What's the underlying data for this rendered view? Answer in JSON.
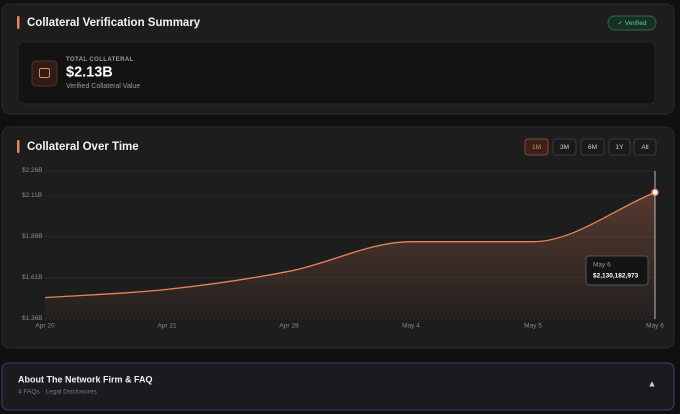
{
  "summary": {
    "title": "Collateral Verification Summary",
    "badge": "✓ Verified",
    "label": "TOTAL COLLATERAL",
    "amount": "$2.13B",
    "caption": "Verified Collateral Value"
  },
  "chart_panel": {
    "title": "Collateral Over Time",
    "ranges": [
      "1M",
      "3M",
      "6M",
      "1Y",
      "All"
    ]
  },
  "chart_data": {
    "type": "area",
    "categories": [
      "Apr 20",
      "Apr 21",
      "Apr 28",
      "May 4",
      "May 5",
      "May 6"
    ],
    "values": [
      1490000000,
      1540000000,
      1650000000,
      1830000000,
      1830000000,
      2130182973
    ],
    "value_labels": [
      null,
      null,
      null,
      null,
      null,
      "$2,130,182,973"
    ],
    "color": "#e8845c",
    "ylim": [
      1360000000,
      2260000000
    ],
    "yticks": [
      {
        "value": 2260000000,
        "label": "$2.26B"
      },
      {
        "value": 2110000000,
        "label": "$2.11B"
      },
      {
        "value": 1860000000,
        "label": "$1.86B"
      },
      {
        "value": 1610000000,
        "label": "$1.61B"
      },
      {
        "value": 1360000000,
        "label": "$1.36B"
      }
    ],
    "grid": true
  },
  "footer": {
    "title": "About The Network Firm & FAQ",
    "subtitle": "4 FAQs · Legal Disclosures",
    "toggle": "▲"
  }
}
